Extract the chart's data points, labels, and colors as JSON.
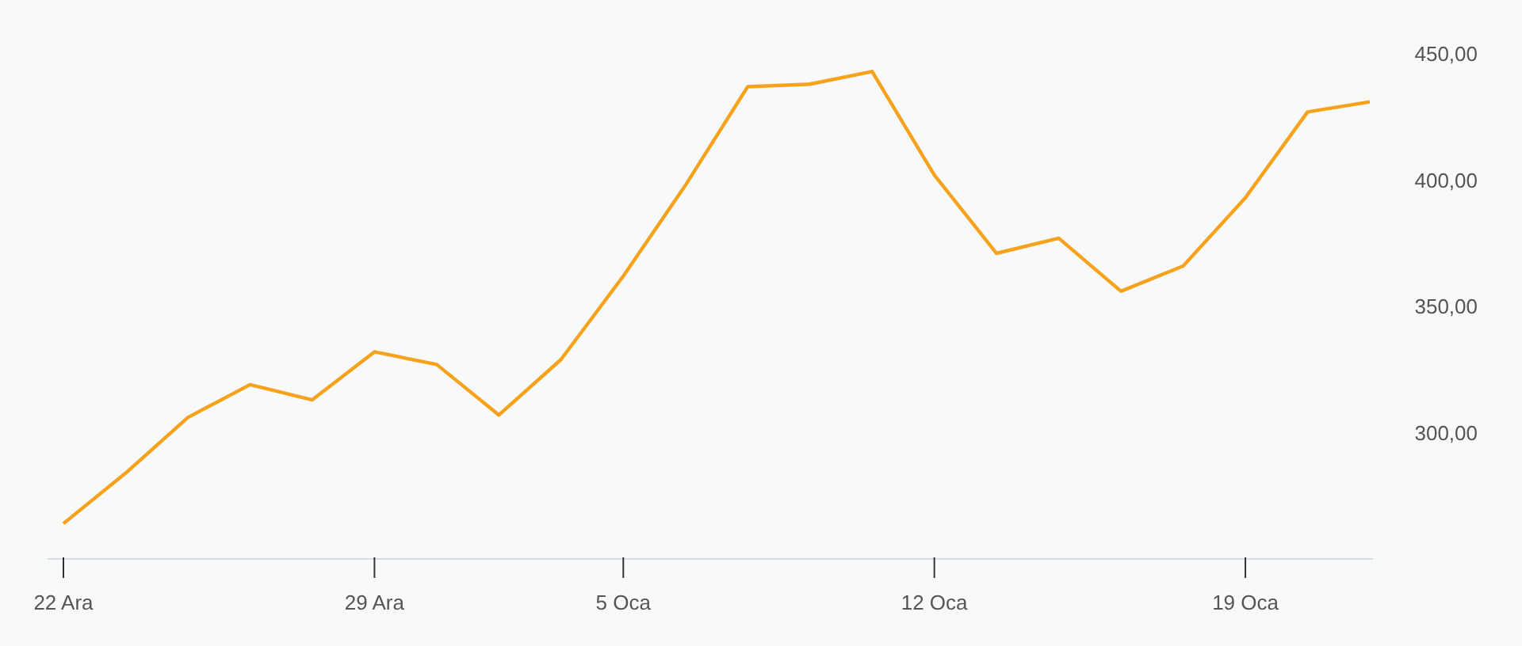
{
  "chart_data": {
    "type": "line",
    "categories": [
      "22 Ara",
      null,
      null,
      null,
      null,
      "29 Ara",
      null,
      null,
      null,
      "5 Oca",
      null,
      null,
      null,
      null,
      "12 Oca",
      null,
      null,
      null,
      null,
      "19 Oca",
      null,
      null
    ],
    "series": [
      {
        "color": "#f7a21b",
        "values": [
          264,
          284,
          306,
          319,
          313,
          332,
          327,
          307,
          329,
          362,
          398,
          437,
          438,
          443,
          402,
          371,
          377,
          356,
          366,
          393,
          427,
          431
        ]
      }
    ],
    "ylim": [
      250,
      450
    ],
    "yticks": [
      {
        "value": 300,
        "label": "300,00"
      },
      {
        "value": 350,
        "label": "350,00"
      },
      {
        "value": 400,
        "label": "400,00"
      },
      {
        "value": 450,
        "label": "450,00"
      }
    ],
    "grid": false,
    "legend": false,
    "marker": "none",
    "line_style": "solid"
  }
}
